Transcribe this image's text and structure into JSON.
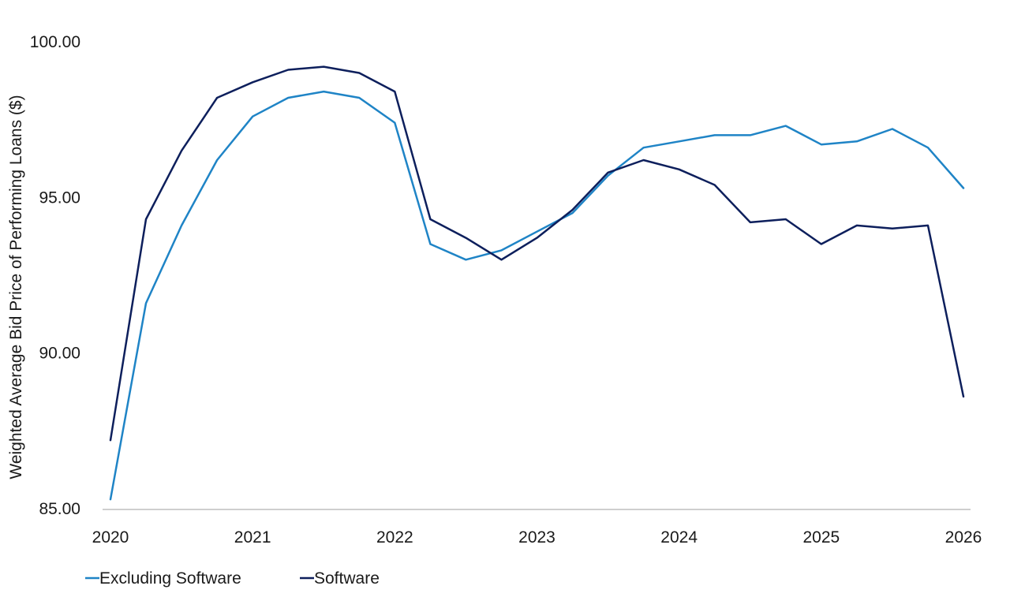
{
  "chart_data": {
    "type": "line",
    "ylabel": "Weighted Average Bid Price of Performing Loans ($)",
    "xlabel": "",
    "ylim": [
      85,
      100
    ],
    "y_ticks": [
      "85.00",
      "90.00",
      "95.00",
      "100.00"
    ],
    "y_tick_values": [
      85,
      90,
      95,
      100
    ],
    "xlim": [
      2020,
      2026
    ],
    "x_ticks": [
      "2020",
      "2021",
      "2022",
      "2023",
      "2024",
      "2025",
      "2026"
    ],
    "x_tick_values": [
      2020,
      2021,
      2022,
      2023,
      2024,
      2025,
      2026
    ],
    "grid": false,
    "legend_position": "bottom-left",
    "x": [
      2020.0,
      2020.25,
      2020.5,
      2020.75,
      2021.0,
      2021.25,
      2021.5,
      2021.75,
      2022.0,
      2022.25,
      2022.5,
      2022.75,
      2023.0,
      2023.25,
      2023.5,
      2023.75,
      2024.0,
      2024.25,
      2024.5,
      2024.75,
      2025.0,
      2025.25,
      2025.5,
      2025.75,
      2026.0
    ],
    "series": [
      {
        "name": "Excluding Software",
        "color": "#1f84c6",
        "values": [
          85.3,
          91.6,
          94.1,
          96.2,
          97.6,
          98.2,
          98.4,
          98.2,
          97.4,
          93.5,
          93.0,
          93.3,
          93.9,
          94.5,
          95.7,
          96.6,
          96.8,
          97.0,
          97.0,
          97.3,
          96.7,
          96.8,
          97.2,
          96.6,
          95.3
        ]
      },
      {
        "name": "Software",
        "color": "#0d1f5c",
        "values": [
          87.2,
          94.3,
          96.5,
          98.2,
          98.7,
          99.1,
          99.2,
          99.0,
          98.4,
          94.3,
          93.7,
          93.0,
          93.7,
          94.6,
          95.8,
          96.2,
          95.9,
          95.4,
          94.2,
          94.3,
          93.5,
          94.1,
          94.0,
          94.1,
          88.6
        ]
      }
    ]
  }
}
